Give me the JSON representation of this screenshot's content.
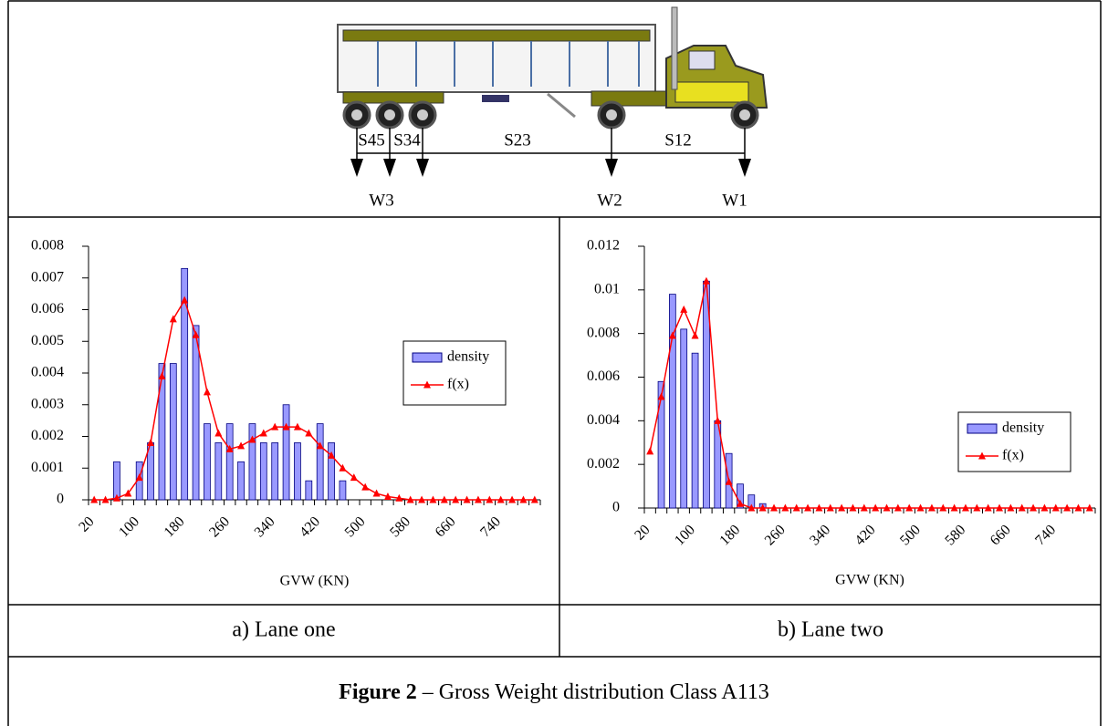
{
  "diagram": {
    "spacings": [
      "S45",
      "S34",
      "S23",
      "S12"
    ],
    "loads": [
      "W3",
      "W2",
      "W1"
    ]
  },
  "chart_data": [
    {
      "type": "bar",
      "xlabel": "GVW (KN)",
      "legend": "center right",
      "categories": [
        "20",
        null,
        null,
        null,
        "100",
        null,
        null,
        null,
        "180",
        null,
        null,
        null,
        "260",
        null,
        null,
        null,
        "340",
        null,
        null,
        null,
        "420",
        null,
        null,
        null,
        "500",
        null,
        null,
        null,
        "580",
        null,
        null,
        null,
        "660",
        null,
        null,
        null,
        "740",
        null,
        null,
        null
      ],
      "ylim": [
        0,
        0.008
      ],
      "yticks": [
        0,
        0.001,
        0.002,
        0.003,
        0.004,
        0.005,
        0.006,
        0.007,
        0.008
      ],
      "series": [
        {
          "name": "density",
          "type": "bar",
          "color": "#9999ff",
          "values": [
            0,
            0,
            0.0012,
            0,
            0.0012,
            0.0018,
            0.0043,
            0.0043,
            0.0073,
            0.0055,
            0.0024,
            0.0018,
            0.0024,
            0.0012,
            0.0024,
            0.0018,
            0.0018,
            0.003,
            0.0018,
            0.0006,
            0.0024,
            0.0018,
            0.0006,
            0,
            0,
            0,
            0,
            0,
            0,
            0,
            0,
            0,
            0,
            0,
            0,
            0,
            0,
            0,
            0,
            0
          ]
        },
        {
          "name": "f(x)",
          "type": "line",
          "color": "#ff0000",
          "values": [
            0,
            0,
            5e-05,
            0.0002,
            0.0007,
            0.0018,
            0.0039,
            0.0057,
            0.0063,
            0.0052,
            0.0034,
            0.0021,
            0.0016,
            0.0017,
            0.0019,
            0.0021,
            0.0023,
            0.0023,
            0.0023,
            0.0021,
            0.0017,
            0.0014,
            0.001,
            0.0007,
            0.0004,
            0.0002,
            0.0001,
            5e-05,
            0,
            0,
            0,
            0,
            0,
            0,
            0,
            0,
            0,
            0,
            0,
            0
          ]
        }
      ]
    },
    {
      "type": "bar",
      "xlabel": "GVW (KN)",
      "legend": "lower right",
      "categories": [
        "20",
        null,
        null,
        null,
        "100",
        null,
        null,
        null,
        "180",
        null,
        null,
        null,
        "260",
        null,
        null,
        null,
        "340",
        null,
        null,
        null,
        "420",
        null,
        null,
        null,
        "500",
        null,
        null,
        null,
        "580",
        null,
        null,
        null,
        "660",
        null,
        null,
        null,
        "740",
        null,
        null,
        null
      ],
      "ylim": [
        0,
        0.012
      ],
      "yticks": [
        0,
        0.002,
        0.004,
        0.006,
        0.008,
        0.01,
        0.012
      ],
      "series": [
        {
          "name": "density",
          "type": "bar",
          "color": "#9999ff",
          "values": [
            0,
            0.0058,
            0.0098,
            0.0082,
            0.0071,
            0.0104,
            0.004,
            0.0025,
            0.0011,
            0.0006,
            0.0002,
            0,
            0,
            0,
            0,
            0,
            0,
            0,
            0,
            0,
            0,
            0,
            0,
            0,
            0,
            0,
            0,
            0,
            0,
            0,
            0,
            0,
            0,
            0,
            0,
            0,
            0,
            0,
            0,
            0
          ]
        },
        {
          "name": "f(x)",
          "type": "line",
          "color": "#ff0000",
          "values": [
            0.0026,
            0.0051,
            0.0079,
            0.0091,
            0.0079,
            0.0104,
            0.004,
            0.0012,
            0.0002,
            0,
            0,
            0,
            0,
            0,
            0,
            0,
            0,
            0,
            0,
            0,
            0,
            0,
            0,
            0,
            0,
            0,
            0,
            0,
            0,
            0,
            0,
            0,
            0,
            0,
            0,
            0,
            0,
            0,
            0,
            0
          ]
        }
      ]
    }
  ],
  "panels": [
    "a) Lane one",
    "b) Lane two"
  ],
  "caption": {
    "label": "Figure 2",
    "text": " – Gross Weight distribution Class A113"
  }
}
